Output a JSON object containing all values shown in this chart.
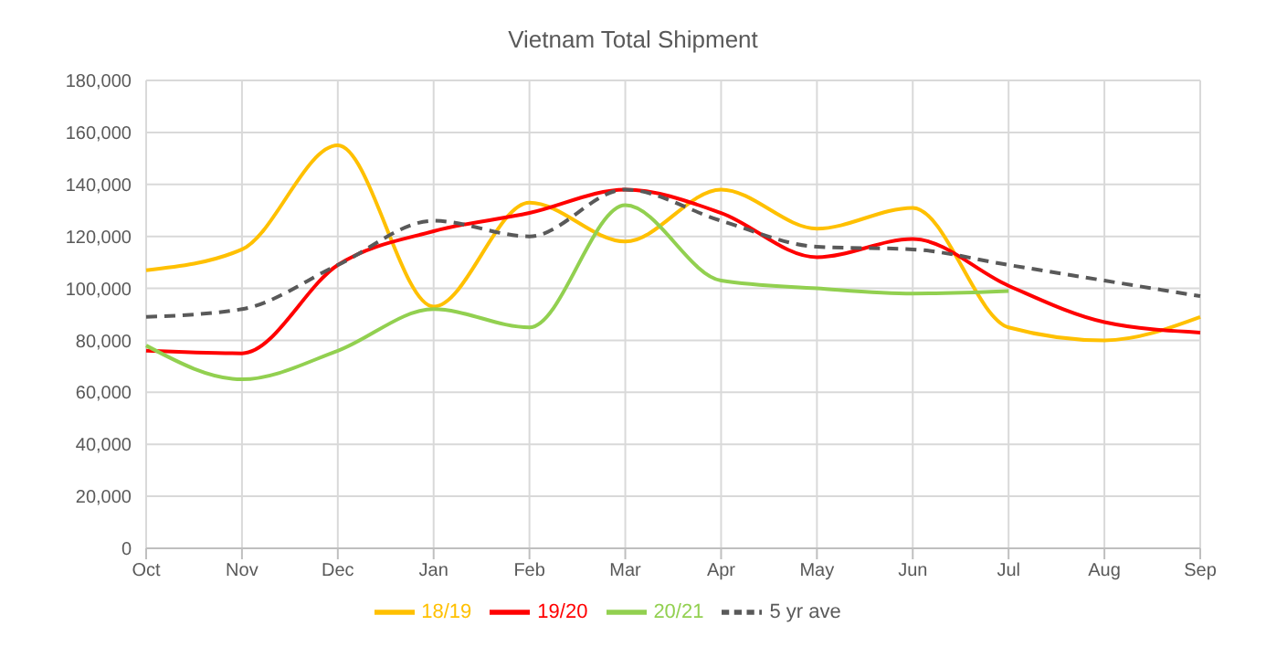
{
  "chart_data": {
    "type": "line",
    "title": "Vietnam Total Shipment",
    "categories": [
      "Oct",
      "Nov",
      "Dec",
      "Jan",
      "Feb",
      "Mar",
      "Apr",
      "May",
      "Jun",
      "Jul",
      "Aug",
      "Sep"
    ],
    "series": [
      {
        "name": "18/19",
        "color": "#ffc000",
        "values": [
          107000,
          115000,
          155000,
          93000,
          133000,
          118000,
          138000,
          123000,
          131000,
          85000,
          80000,
          89000
        ]
      },
      {
        "name": "19/20",
        "color": "#ff0000",
        "values": [
          76000,
          75000,
          109000,
          122000,
          129000,
          138000,
          129000,
          112000,
          119000,
          101000,
          87000,
          83000
        ]
      },
      {
        "name": "20/21",
        "color": "#92d050",
        "values": [
          78000,
          65000,
          76000,
          92000,
          85000,
          132000,
          103000,
          100000,
          98000,
          99000,
          null,
          null
        ]
      },
      {
        "name": "5 yr ave",
        "color": "#595959",
        "line_style": "dashed",
        "values": [
          89000,
          92000,
          109000,
          126000,
          120000,
          138000,
          126000,
          116000,
          115000,
          109000,
          103000,
          97000
        ]
      }
    ],
    "ylim": [
      0,
      180000
    ],
    "yticks": [
      0,
      {
        "value": 20000,
        "label": "20,000"
      },
      {
        "value": 40000,
        "label": "40,000"
      },
      {
        "value": 60000,
        "label": "60,000"
      },
      {
        "value": 80000,
        "label": "80,000"
      },
      {
        "value": 100000,
        "label": "100,000"
      },
      {
        "value": 120000,
        "label": "120,000"
      },
      {
        "value": 140000,
        "label": "140,000"
      },
      {
        "value": 160000,
        "label": "160,000"
      },
      {
        "value": 180000,
        "label": "180,000"
      }
    ],
    "grid": true,
    "legend": "bottom",
    "marker": "none",
    "line_style": "solid"
  }
}
